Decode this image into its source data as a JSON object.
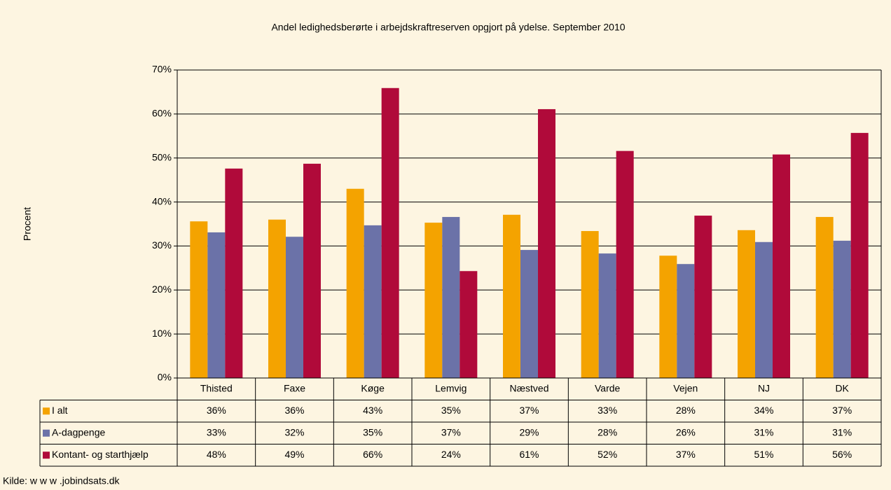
{
  "chart_data": {
    "type": "bar",
    "title": "Andel ledighedsberørte i arbejdskraftreserven opgjort på ydelse. September 2010",
    "y_label": "Procent",
    "source": "Kilde: w w w .jobindsats.dk",
    "categories": [
      "Thisted",
      "Faxe",
      "Køge",
      "Lemvig",
      "Næstved",
      "Varde",
      "Vejen",
      "NJ",
      "DK"
    ],
    "series": [
      {
        "name": "I alt",
        "color": "#f4a300",
        "values": [
          35.6,
          36.0,
          43.0,
          35.3,
          37.1,
          33.4,
          27.8,
          33.6,
          36.6
        ],
        "value_labels": [
          "36%",
          "36%",
          "43%",
          "35%",
          "37%",
          "33%",
          "28%",
          "34%",
          "37%"
        ]
      },
      {
        "name": "A-dagpenge",
        "color": "#6b72a8",
        "values": [
          33.1,
          32.1,
          34.7,
          36.6,
          29.1,
          28.3,
          25.9,
          30.9,
          31.2
        ],
        "value_labels": [
          "33%",
          "32%",
          "35%",
          "37%",
          "29%",
          "28%",
          "26%",
          "31%",
          "31%"
        ]
      },
      {
        "name": "Kontant- og starthjælp",
        "color": "#b00a3a",
        "values": [
          47.6,
          48.7,
          65.9,
          24.3,
          61.1,
          51.6,
          36.9,
          50.8,
          55.7
        ],
        "value_labels": [
          "48%",
          "49%",
          "66%",
          "24%",
          "61%",
          "52%",
          "37%",
          "51%",
          "56%"
        ]
      }
    ],
    "ylim": [
      0,
      70
    ],
    "yticks": [
      {
        "value": 0,
        "label": "0%"
      },
      {
        "value": 10,
        "label": "10%"
      },
      {
        "value": 20,
        "label": "20%"
      },
      {
        "value": 30,
        "label": "30%"
      },
      {
        "value": 40,
        "label": "40%"
      },
      {
        "value": 50,
        "label": "50%"
      },
      {
        "value": 60,
        "label": "60%"
      },
      {
        "value": 70,
        "label": "70%"
      }
    ],
    "grid": true
  }
}
